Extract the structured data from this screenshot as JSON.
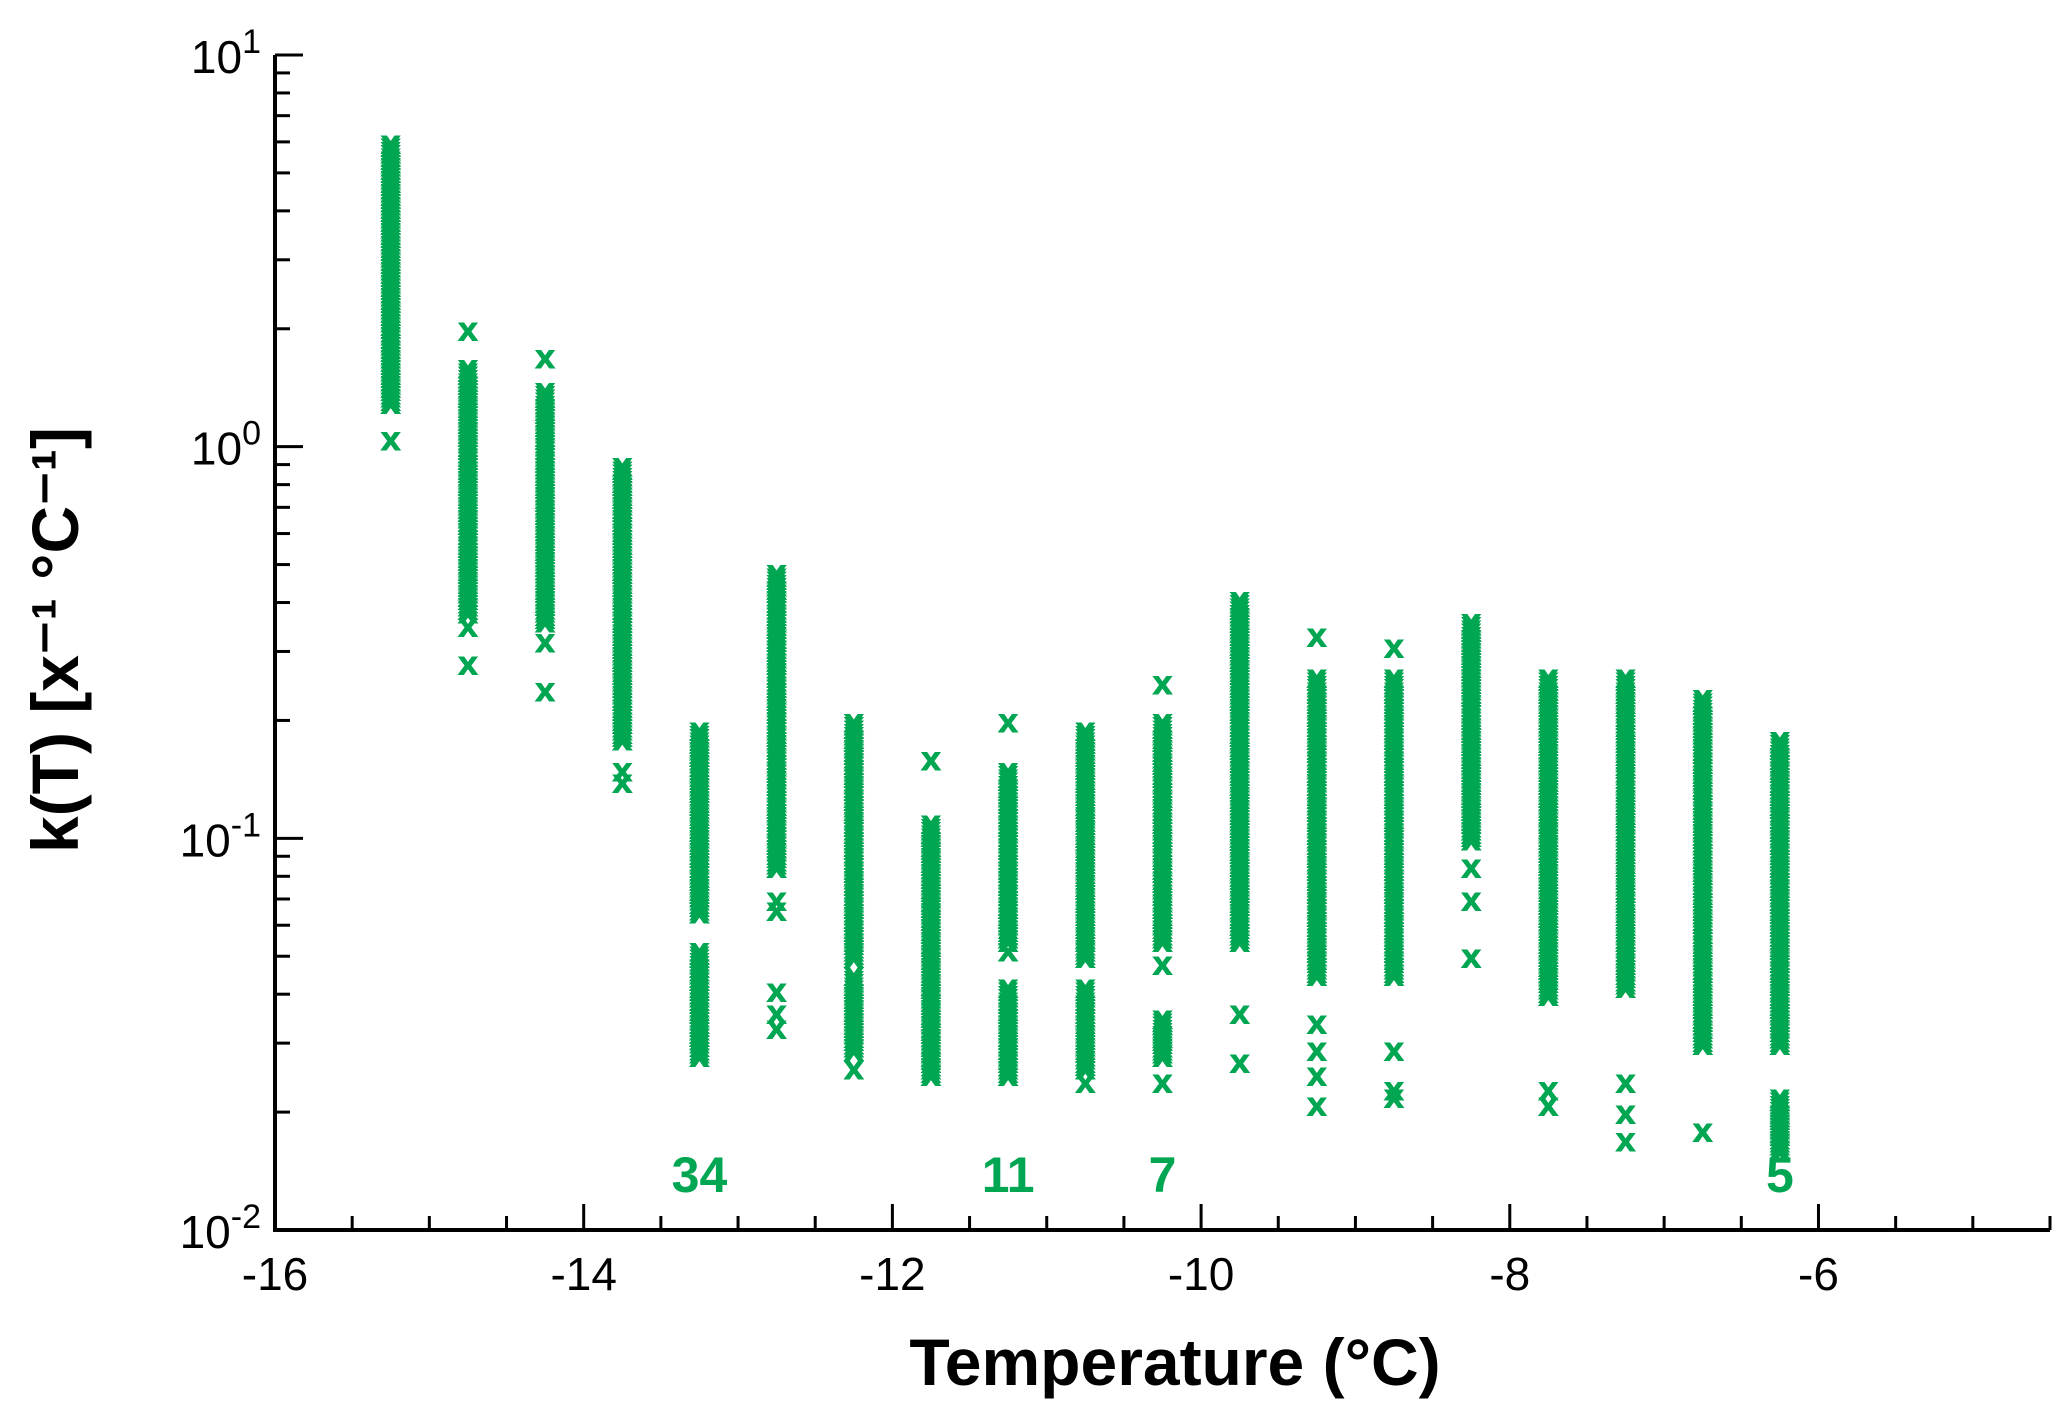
{
  "chart_data": {
    "type": "scatter",
    "marker": "x",
    "color": "#00a651",
    "xlabel": "Temperature (°C)",
    "ylabel": "k(T)  [x⁻¹ °C⁻¹]",
    "xlim": [
      -16,
      -4.5
    ],
    "ylim": [
      0.01,
      10
    ],
    "yscale": "log",
    "grid": false,
    "legend": "none",
    "x_ticks": [
      "-16",
      "-14",
      "-12",
      "-10",
      "-8",
      "-6"
    ],
    "y_ticks": [
      {
        "base": "10",
        "exp": "-2"
      },
      {
        "base": "10",
        "exp": "-1"
      },
      {
        "base": "10",
        "exp": "0"
      },
      {
        "base": "10",
        "exp": "1"
      }
    ],
    "groups": [
      {
        "x": -15.25,
        "ranges": [
          [
            1.3,
            6.0
          ]
        ],
        "points": [
          1.05
        ]
      },
      {
        "x": -14.75,
        "ranges": [
          [
            0.38,
            1.6
          ]
        ],
        "points": [
          2.0,
          0.35,
          0.28
        ]
      },
      {
        "x": -14.25,
        "ranges": [
          [
            0.36,
            1.4
          ]
        ],
        "points": [
          1.7,
          0.32,
          0.24
        ]
      },
      {
        "x": -13.75,
        "ranges": [
          [
            0.18,
            0.9
          ]
        ],
        "points": [
          0.15,
          0.14
        ]
      },
      {
        "x": -13.25,
        "ranges": [
          [
            0.065,
            0.19
          ],
          [
            0.028,
            0.052
          ]
        ],
        "points": []
      },
      {
        "x": -12.75,
        "ranges": [
          [
            0.085,
            0.48
          ]
        ],
        "points": [
          0.07,
          0.066,
          0.041,
          0.036,
          0.033
        ]
      },
      {
        "x": -12.25,
        "ranges": [
          [
            0.05,
            0.2
          ],
          [
            0.029,
            0.045
          ]
        ],
        "points": [
          0.026
        ]
      },
      {
        "x": -11.75,
        "ranges": [
          [
            0.045,
            0.11
          ],
          [
            0.025,
            0.045
          ]
        ],
        "points": [
          0.16
        ]
      },
      {
        "x": -11.25,
        "ranges": [
          [
            0.055,
            0.15
          ],
          [
            0.025,
            0.042
          ]
        ],
        "points": [
          0.2,
          0.052
        ]
      },
      {
        "x": -10.75,
        "ranges": [
          [
            0.05,
            0.19
          ],
          [
            0.026,
            0.042
          ]
        ],
        "points": [
          0.024
        ]
      },
      {
        "x": -10.25,
        "ranges": [
          [
            0.055,
            0.2
          ],
          [
            0.028,
            0.035
          ]
        ],
        "points": [
          0.25,
          0.048,
          0.024
        ]
      },
      {
        "x": -9.75,
        "ranges": [
          [
            0.055,
            0.41
          ]
        ],
        "points": [
          0.036,
          0.027
        ]
      },
      {
        "x": -9.25,
        "ranges": [
          [
            0.045,
            0.26
          ]
        ],
        "points": [
          0.33,
          0.034,
          0.029,
          0.025,
          0.021
        ]
      },
      {
        "x": -8.75,
        "ranges": [
          [
            0.045,
            0.26
          ]
        ],
        "points": [
          0.31,
          0.029,
          0.023,
          0.022
        ]
      },
      {
        "x": -8.25,
        "ranges": [
          [
            0.1,
            0.36
          ]
        ],
        "points": [
          0.085,
          0.07,
          0.05
        ]
      },
      {
        "x": -7.75,
        "ranges": [
          [
            0.04,
            0.26
          ]
        ],
        "points": [
          0.023,
          0.021
        ]
      },
      {
        "x": -7.25,
        "ranges": [
          [
            0.042,
            0.26
          ]
        ],
        "points": [
          0.024,
          0.02,
          0.017
        ]
      },
      {
        "x": -6.75,
        "ranges": [
          [
            0.03,
            0.23
          ]
        ],
        "points": [
          0.018
        ]
      },
      {
        "x": -6.25,
        "ranges": [
          [
            0.03,
            0.18
          ],
          [
            0.016,
            0.022
          ]
        ],
        "points": []
      }
    ],
    "annotations": [
      {
        "text": "34",
        "x": -13.25
      },
      {
        "text": "11",
        "x": -11.25
      },
      {
        "text": "7",
        "x": -10.25
      },
      {
        "text": "5",
        "x": -6.25
      }
    ]
  }
}
